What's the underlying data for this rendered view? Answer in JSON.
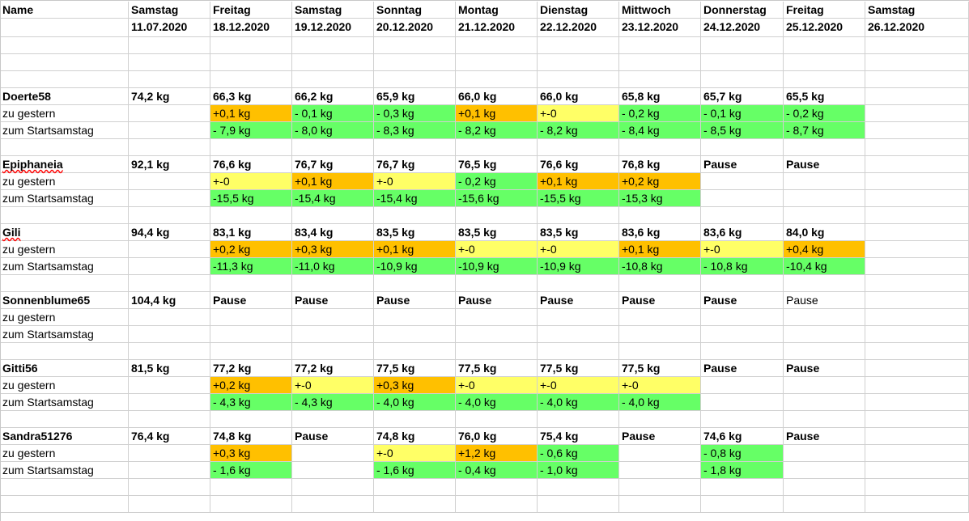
{
  "header": {
    "name_label": "Name",
    "days": [
      "Samstag",
      "Freitag",
      "Samstag",
      "Sonntag",
      "Montag",
      "Dienstag",
      "Mittwoch",
      "Donnerstag",
      "Freitag",
      "Samstag"
    ],
    "dates": [
      "11.07.2020",
      "18.12.2020",
      "19.12.2020",
      "20.12.2020",
      "21.12.2020",
      "22.12.2020",
      "23.12.2020",
      "24.12.2020",
      "25.12.2020",
      "26.12.2020"
    ]
  },
  "colors": {
    "up": "#ffc000",
    "same": "#ffff66",
    "down": "#66ff66",
    "gridline": "#d0d0d0"
  },
  "people": [
    {
      "name": "Doerte58",
      "start": "74,2 kg",
      "weights": [
        "66,3 kg",
        "66,2 kg",
        "65,9 kg",
        "66,0 kg",
        "66,0 kg",
        "65,8 kg",
        "65,7 kg",
        "65,5 kg",
        ""
      ],
      "weights_bold": [
        true,
        true,
        true,
        true,
        true,
        true,
        true,
        true,
        false
      ],
      "label_gestern": "zu gestern",
      "gestern": [
        "+0,1 kg",
        "- 0,1 kg",
        "- 0,3 kg",
        "+0,1 kg",
        "+-0",
        "- 0,2 kg",
        "- 0,1 kg",
        "- 0,2 kg",
        ""
      ],
      "gestern_colors": [
        "orange",
        "green",
        "green",
        "orange",
        "yellow",
        "green",
        "green",
        "green",
        ""
      ],
      "label_start": "zum Startsamstag",
      "startdiff": [
        "- 7,9 kg",
        "- 8,0 kg",
        "- 8,3 kg",
        "- 8,2 kg",
        "- 8,2 kg",
        "- 8,4 kg",
        "- 8,5 kg",
        "- 8,7 kg",
        ""
      ],
      "start_colors": [
        "green",
        "green",
        "green",
        "green",
        "green",
        "green",
        "green",
        "green",
        ""
      ]
    },
    {
      "name": "Epiphaneia",
      "start": "92,1 kg",
      "spell": true,
      "weights": [
        "76,6 kg",
        "76,7 kg",
        "76,7 kg",
        "76,5 kg",
        "76,6 kg",
        "76,8 kg",
        "Pause",
        "Pause",
        ""
      ],
      "weights_bold": [
        true,
        true,
        true,
        true,
        true,
        true,
        true,
        true,
        false
      ],
      "label_gestern": "zu gestern",
      "gestern": [
        "+-0",
        "+0,1 kg",
        "+-0",
        "- 0,2 kg",
        "+0,1 kg",
        "+0,2 kg",
        "",
        "",
        ""
      ],
      "gestern_colors": [
        "yellow",
        "orange",
        "yellow",
        "green",
        "orange",
        "orange",
        "",
        "",
        ""
      ],
      "label_start": "zum Startsamstag",
      "startdiff": [
        "-15,5 kg",
        "-15,4 kg",
        "-15,4 kg",
        "-15,6 kg",
        "-15,5 kg",
        "-15,3 kg",
        "",
        "",
        ""
      ],
      "start_colors": [
        "green",
        "green",
        "green",
        "green",
        "green",
        "green",
        "",
        "",
        ""
      ]
    },
    {
      "name": "Gili",
      "start": "94,4 kg",
      "spell": true,
      "weights": [
        "83,1 kg",
        "83,4 kg",
        "83,5 kg",
        "83,5 kg",
        "83,5 kg",
        "83,6 kg",
        "83,6 kg",
        "84,0 kg",
        ""
      ],
      "weights_bold": [
        true,
        true,
        true,
        true,
        true,
        true,
        true,
        true,
        false
      ],
      "label_gestern": "zu gestern",
      "gestern": [
        "+0,2 kg",
        "+0,3 kg",
        "+0,1 kg",
        "+-0",
        "+-0",
        "+0,1 kg",
        "+-0",
        "+0,4 kg",
        ""
      ],
      "gestern_colors": [
        "orange",
        "orange",
        "orange",
        "yellow",
        "yellow",
        "orange",
        "yellow",
        "orange",
        ""
      ],
      "label_start": "zum Startsamstag",
      "startdiff": [
        "-11,3 kg",
        "-11,0 kg",
        "-10,9 kg",
        "-10,9 kg",
        "-10,9 kg",
        "-10,8 kg",
        "- 10,8 kg",
        "-10,4 kg",
        ""
      ],
      "start_colors": [
        "green",
        "green",
        "green",
        "green",
        "green",
        "green",
        "green",
        "green",
        ""
      ]
    },
    {
      "name": "Sonnenblume65",
      "start": "104,4 kg",
      "weights": [
        "Pause",
        "Pause",
        "Pause",
        "Pause",
        "Pause",
        "Pause",
        "Pause",
        "Pause",
        ""
      ],
      "weights_bold": [
        true,
        true,
        true,
        true,
        true,
        true,
        true,
        false,
        false
      ],
      "label_gestern": "zu gestern",
      "gestern": [
        "",
        "",
        "",
        "",
        "",
        "",
        "",
        "",
        ""
      ],
      "gestern_colors": [
        "",
        "",
        "",
        "",
        "",
        "",
        "",
        "",
        ""
      ],
      "label_start": "zum Startsamstag",
      "startdiff": [
        "",
        "",
        "",
        "",
        "",
        "",
        "",
        "",
        ""
      ],
      "start_colors": [
        "",
        "",
        "",
        "",
        "",
        "",
        "",
        "",
        ""
      ]
    },
    {
      "name": "Gitti56",
      "start": "81,5 kg",
      "weights": [
        "77,2 kg",
        "77,2 kg",
        "77,5 kg",
        "77,5 kg",
        "77,5 kg",
        "77,5 kg",
        "Pause",
        "Pause",
        ""
      ],
      "weights_bold": [
        true,
        true,
        true,
        true,
        true,
        true,
        true,
        true,
        false
      ],
      "label_gestern": "zu gestern",
      "gestern": [
        "+0,2 kg",
        "+-0",
        "+0,3 kg",
        "+-0",
        "+-0",
        "+-0",
        "",
        "",
        ""
      ],
      "gestern_colors": [
        "orange",
        "yellow",
        "orange",
        "yellow",
        "yellow",
        "yellow",
        "",
        "",
        ""
      ],
      "label_start": "zum Startsamstag",
      "startdiff": [
        "- 4,3 kg",
        "- 4,3 kg",
        "- 4,0 kg",
        "- 4,0 kg",
        "- 4,0 kg",
        "- 4,0 kg",
        "",
        "",
        ""
      ],
      "start_colors": [
        "green",
        "green",
        "green",
        "green",
        "green",
        "green",
        "",
        "",
        ""
      ]
    },
    {
      "name": "Sandra51276",
      "start": "76,4 kg",
      "weights": [
        "74,8 kg",
        "Pause",
        "74,8 kg",
        "76,0 kg",
        "75,4 kg",
        "Pause",
        "74,6 kg",
        "Pause",
        ""
      ],
      "weights_bold": [
        true,
        true,
        true,
        true,
        true,
        true,
        true,
        true,
        false
      ],
      "label_gestern": "zu gestern",
      "gestern": [
        "+0,3 kg",
        "",
        "+-0",
        "+1,2 kg",
        "- 0,6 kg",
        "",
        "- 0,8 kg",
        "",
        ""
      ],
      "gestern_colors": [
        "orange",
        "",
        "yellow",
        "orange",
        "green",
        "",
        "green",
        "",
        ""
      ],
      "label_start": "zum Startsamstag",
      "startdiff": [
        "- 1,6 kg",
        "",
        "- 1,6 kg",
        "- 0,4 kg",
        "- 1,0 kg",
        "",
        "- 1,8 kg",
        "",
        ""
      ],
      "start_colors": [
        "green",
        "",
        "green",
        "green",
        "green",
        "",
        "green",
        "",
        ""
      ]
    }
  ]
}
